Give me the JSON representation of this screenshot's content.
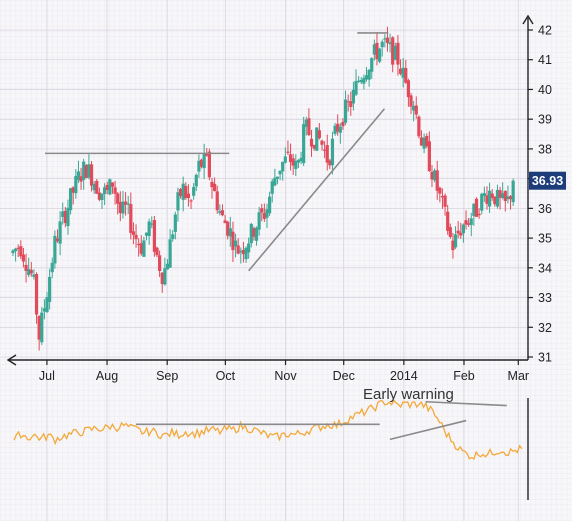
{
  "chart_data": [
    {
      "type": "candlestick",
      "y_axis_side": "right",
      "ylim": [
        31,
        42
      ],
      "y_ticks": [
        "31",
        "32",
        "33",
        "34",
        "35",
        "36",
        "37",
        "38",
        "39",
        "40",
        "41",
        "42"
      ],
      "x_tick_labels": [
        "Jul",
        "Aug",
        "Sep",
        "Oct",
        "Nov",
        "Dec",
        "2014",
        "Feb",
        "Mar"
      ],
      "x_tick_days": [
        0,
        31,
        62,
        92,
        123,
        153,
        184,
        215,
        243
      ],
      "x_range_days": [
        -18,
        248
      ],
      "last_price_label": "36.93",
      "last_price": 36.93,
      "colors": {
        "up": "#3aa796",
        "down": "#e04a5a",
        "price_badge": "#1d3c7a",
        "trendline": "#8a8a8a"
      },
      "grid": true,
      "price_path": [
        [
          -18,
          34.5
        ],
        [
          -14,
          34.8
        ],
        [
          -10,
          34.1
        ],
        [
          -7,
          33.6
        ],
        [
          -4,
          31.7
        ],
        [
          0,
          33.2
        ],
        [
          4,
          34.8
        ],
        [
          8,
          35.6
        ],
        [
          12,
          36.3
        ],
        [
          16,
          37.0
        ],
        [
          20,
          37.4
        ],
        [
          23,
          37.1
        ],
        [
          27,
          36.6
        ],
        [
          31,
          36.5
        ],
        [
          34,
          36.9
        ],
        [
          38,
          35.8
        ],
        [
          41,
          36.0
        ],
        [
          45,
          35.1
        ],
        [
          49,
          34.7
        ],
        [
          53,
          35.5
        ],
        [
          57,
          34.3
        ],
        [
          60,
          33.7
        ],
        [
          63,
          34.6
        ],
        [
          67,
          36.1
        ],
        [
          70,
          36.7
        ],
        [
          74,
          36.1
        ],
        [
          78,
          37.4
        ],
        [
          82,
          37.6
        ],
        [
          86,
          36.6
        ],
        [
          90,
          35.7
        ],
        [
          94,
          35.3
        ],
        [
          98,
          34.6
        ],
        [
          101,
          34.7
        ],
        [
          105,
          35.1
        ],
        [
          109,
          35.6
        ],
        [
          113,
          35.9
        ],
        [
          117,
          37.0
        ],
        [
          121,
          37.5
        ],
        [
          125,
          37.7
        ],
        [
          129,
          37.3
        ],
        [
          133,
          38.7
        ],
        [
          137,
          38.4
        ],
        [
          141,
          38.3
        ],
        [
          145,
          37.6
        ],
        [
          149,
          38.6
        ],
        [
          153,
          39.2
        ],
        [
          157,
          39.6
        ],
        [
          161,
          40.4
        ],
        [
          165,
          40.8
        ],
        [
          169,
          41.2
        ],
        [
          173,
          41.5
        ],
        [
          177,
          41.3
        ],
        [
          181,
          41.0
        ],
        [
          185,
          40.2
        ],
        [
          189,
          39.6
        ],
        [
          193,
          38.3
        ],
        [
          197,
          37.6
        ],
        [
          201,
          36.7
        ],
        [
          205,
          35.8
        ],
        [
          209,
          34.7
        ],
        [
          213,
          35.3
        ],
        [
          217,
          35.6
        ],
        [
          221,
          35.9
        ],
        [
          225,
          36.4
        ],
        [
          229,
          36.6
        ],
        [
          233,
          36.2
        ],
        [
          237,
          36.1
        ],
        [
          241,
          36.93
        ]
      ],
      "trendlines": [
        {
          "from": [
            -1,
            37.85
          ],
          "to": [
            94,
            37.85
          ]
        },
        {
          "from": [
            104,
            33.9
          ],
          "to": [
            174,
            39.35
          ]
        },
        {
          "from": [
            160,
            41.9
          ],
          "to": [
            176,
            41.9
          ]
        }
      ]
    },
    {
      "type": "line",
      "indicator": true,
      "annotation": "Early warning",
      "color": "#f3a93a",
      "ylim": [
        0,
        100
      ],
      "values": [
        55,
        62,
        58,
        60,
        57,
        60,
        56,
        59,
        61,
        63,
        64,
        66,
        68,
        67,
        70,
        69,
        71,
        68,
        66,
        63,
        65,
        62,
        60,
        63,
        61,
        64,
        62,
        63,
        65,
        66,
        64,
        67,
        66,
        70,
        68,
        66,
        63,
        60,
        58,
        60,
        62,
        61,
        63,
        66,
        68,
        70,
        72,
        71,
        75,
        79,
        82,
        85,
        88,
        92,
        96,
        95,
        92,
        94,
        93,
        94,
        91,
        85,
        75,
        62,
        53,
        45,
        40,
        38,
        42,
        40,
        43,
        45,
        42,
        44,
        46
      ],
      "trendlines": [
        {
          "from": [
            0.24,
            72
          ],
          "to": [
            0.72,
            72
          ]
        },
        {
          "from": [
            0.74,
            56
          ],
          "to": [
            0.89,
            76
          ]
        },
        {
          "from": [
            0.81,
            96
          ],
          "to": [
            0.97,
            92
          ]
        }
      ]
    }
  ]
}
